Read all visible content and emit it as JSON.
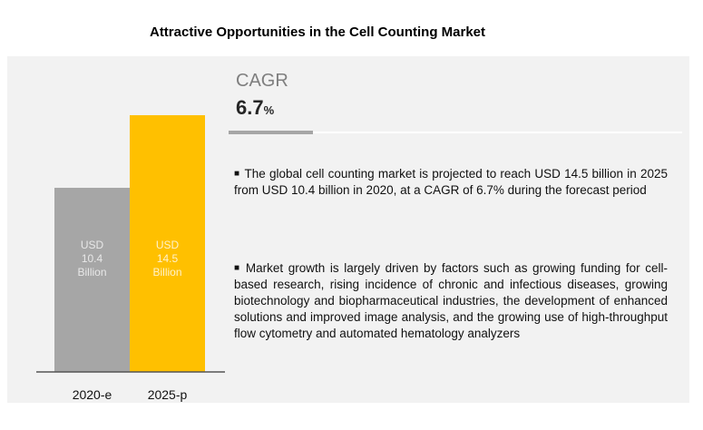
{
  "title": "Attractive Opportunities in the Cell Counting Market",
  "cagr": {
    "label": "CAGR",
    "value": "6.7",
    "unit": "%"
  },
  "bullets": [
    "The global cell counting  market is projected to reach USD 14.5 billion in 2025 from USD 10.4 billion in 2020, at a CAGR of 6.7% during the forecast period",
    "Market growth is largely driven by factors such as growing funding for cell-based research, rising incidence of chronic and infectious diseases, growing biotechnology and biopharmaceutical industries, the development of enhanced solutions and improved image analysis, and the growing use of high-throughput flow cytometry and automated hematology analyzers"
  ],
  "chart_data": {
    "type": "bar",
    "categories": [
      "2020-e",
      "2025-p"
    ],
    "values": [
      10.4,
      14.5
    ],
    "data_labels": [
      [
        "USD",
        "10.4",
        "Billion"
      ],
      [
        "USD",
        "14.5",
        "Billion"
      ]
    ],
    "colors": [
      "#a6a6a6",
      "#ffc000"
    ],
    "label_colors": [
      "#e8e8e8",
      "#fff2cc"
    ],
    "ylim": [
      0,
      14.5
    ]
  }
}
